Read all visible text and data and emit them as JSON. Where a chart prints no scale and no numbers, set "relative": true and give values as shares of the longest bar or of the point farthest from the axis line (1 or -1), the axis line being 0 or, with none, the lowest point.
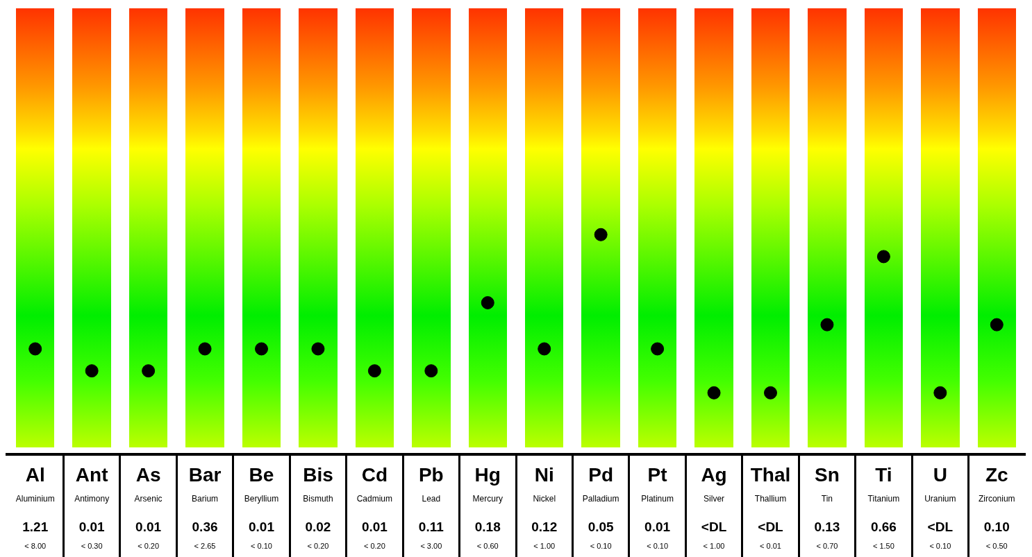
{
  "chart_data": {
    "type": "scatter",
    "relative": true,
    "marker": "circle",
    "grid": false,
    "legend": false,
    "categories": [
      "Al",
      "Ant",
      "As",
      "Bar",
      "Be",
      "Bis",
      "Cd",
      "Pb",
      "Hg",
      "Ni",
      "Pd",
      "Pt",
      "Ag",
      "Thal",
      "Sn",
      "Ti",
      "U",
      "Zc"
    ],
    "series": [
      {
        "color": "#000000",
        "values": [
          0.48,
          0.38,
          0.38,
          0.48,
          0.48,
          0.48,
          0.38,
          0.38,
          0.69,
          0.48,
          1,
          0.48,
          0.28,
          0.28,
          0.59,
          0.9,
          0.28,
          0.59
        ]
      }
    ],
    "annotations": [
      "Aluminium",
      "1.21",
      "< 8.00",
      "Antimony",
      "0.01",
      "< 0.30",
      "Arsenic",
      "0.01",
      "< 0.20",
      "Barium",
      "0.36",
      "< 2.65",
      "Beryllium",
      "0.01",
      "< 0.10",
      "Bismuth",
      "0.02",
      "< 0.20",
      "Cadmium",
      "0.01",
      "< 0.20",
      "Lead",
      "0.11",
      "< 3.00",
      "Mercury",
      "0.18",
      "< 0.60",
      "Nickel",
      "0.12",
      "< 1.00",
      "Palladium",
      "0.05",
      "< 0.10",
      "Platinum",
      "0.01",
      "< 0.10",
      "Silver",
      "<DL",
      "< 1.00",
      "Thallium",
      "<DL",
      "< 0.01",
      "Tin",
      "0.13",
      "< 0.70",
      "Titanium",
      "0.66",
      "< 1.50",
      "Uranium",
      "<DL",
      "< 0.10",
      "Zirconium",
      "0.10",
      "< 0.50"
    ]
  }
}
